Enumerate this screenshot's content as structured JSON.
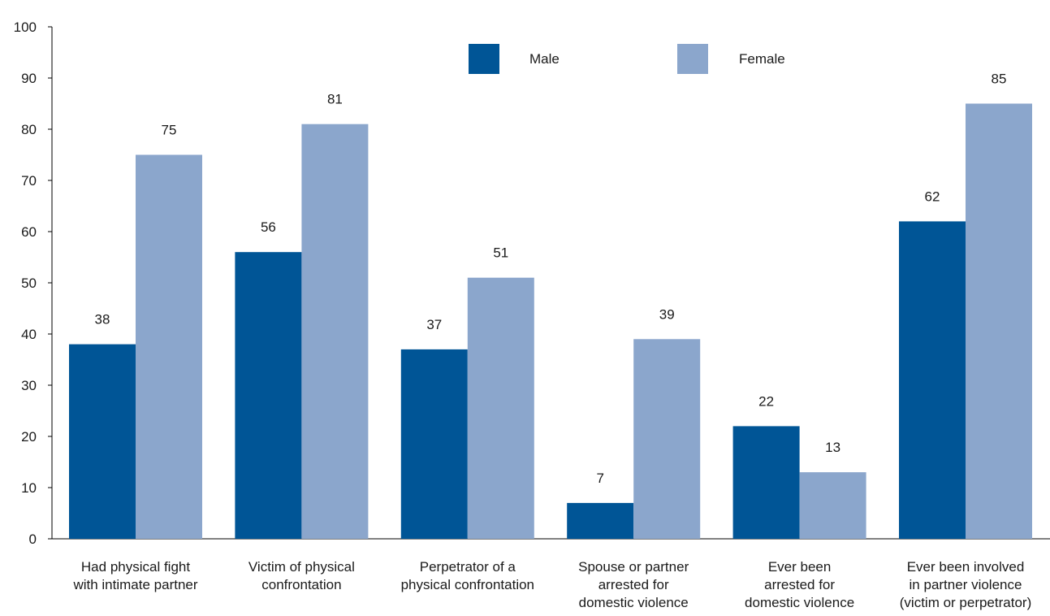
{
  "chart_data": {
    "type": "bar",
    "title": "",
    "xlabel": "",
    "ylabel": "",
    "ylim": [
      0,
      100
    ],
    "yticks": [
      0,
      10,
      20,
      30,
      40,
      50,
      60,
      70,
      80,
      90,
      100
    ],
    "grid": false,
    "legend_position": "top-center",
    "categories": [
      [
        "Had physical fight",
        "with intimate partner"
      ],
      [
        "Victim of physical",
        "confrontation"
      ],
      [
        "Perpetrator of a",
        "physical confrontation"
      ],
      [
        "Spouse or partner",
        "arrested for",
        "domestic violence"
      ],
      [
        "Ever been",
        "arrested for",
        "domestic violence"
      ],
      [
        "Ever been involved",
        "in partner violence",
        "(victim or perpetrator)"
      ]
    ],
    "series": [
      {
        "name": "Male",
        "color": "#005596",
        "values": [
          38,
          56,
          37,
          7,
          22,
          62
        ]
      },
      {
        "name": "Female",
        "color": "#8ba6cc",
        "values": [
          75,
          81,
          51,
          39,
          13,
          85
        ]
      }
    ]
  }
}
